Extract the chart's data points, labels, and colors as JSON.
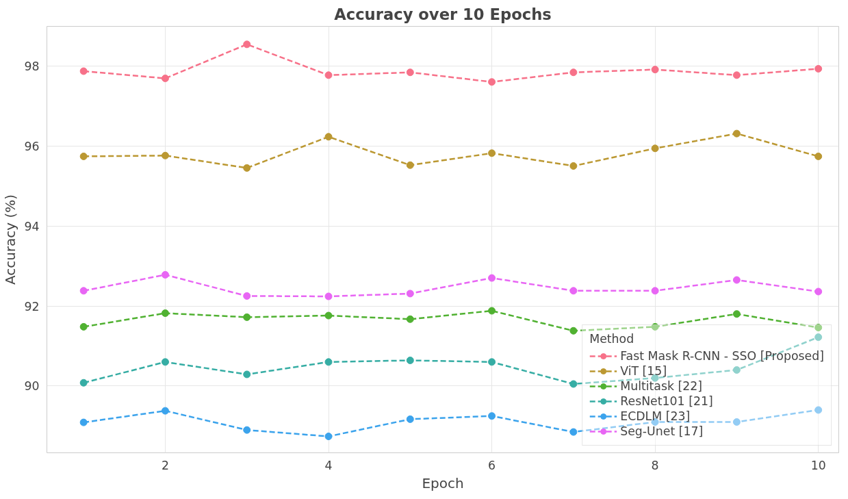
{
  "chart_data": {
    "type": "line",
    "title": "Accuracy over 10 Epochs",
    "xlabel": "Epoch",
    "ylabel": "Accuracy (%)",
    "legend_title": "Method",
    "x": [
      1,
      2,
      3,
      4,
      5,
      6,
      7,
      8,
      9,
      10
    ],
    "xlim": [
      0.55,
      10.25
    ],
    "ylim": [
      88.33,
      98.99
    ],
    "xticks": [
      2,
      4,
      6,
      8,
      10
    ],
    "yticks": [
      90,
      92,
      94,
      96,
      98
    ],
    "grid": true,
    "legend": "bottom right",
    "marker": "circle",
    "line_style": "dashed",
    "series": [
      {
        "name": "Fast Mask R-CNN - SSO [Proposed]",
        "color": "#f77189",
        "values": [
          97.87,
          97.69,
          98.54,
          97.77,
          97.84,
          97.6,
          97.84,
          97.91,
          97.77,
          97.93
        ]
      },
      {
        "name": "ViT [15]",
        "color": "#bb9832",
        "values": [
          95.74,
          95.76,
          95.45,
          96.23,
          95.52,
          95.82,
          95.5,
          95.94,
          96.31,
          95.74
        ]
      },
      {
        "name": "Multitask [22]",
        "color": "#50b131",
        "values": [
          91.48,
          91.82,
          91.72,
          91.76,
          91.67,
          91.88,
          91.38,
          91.48,
          91.8,
          91.46
        ]
      },
      {
        "name": "ResNet101 [21]",
        "color": "#36ada4",
        "values": [
          90.08,
          90.6,
          90.29,
          90.6,
          90.64,
          90.6,
          90.05,
          90.2,
          90.4,
          91.22
        ]
      },
      {
        "name": "ECDLM [23]",
        "color": "#3ba3ec",
        "values": [
          89.09,
          89.38,
          88.9,
          88.74,
          89.17,
          89.25,
          88.85,
          89.1,
          89.1,
          89.4
        ]
      },
      {
        "name": "Seg-Unet [17]",
        "color": "#e866f4",
        "values": [
          92.38,
          92.78,
          92.25,
          92.24,
          92.31,
          92.7,
          92.38,
          92.38,
          92.65,
          92.36
        ]
      }
    ]
  }
}
